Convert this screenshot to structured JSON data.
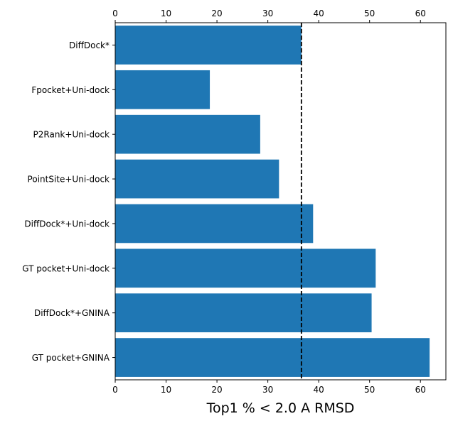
{
  "chart_data": {
    "type": "bar",
    "orientation": "horizontal",
    "categories": [
      "DiffDock*",
      "Fpocket+Uni-dock",
      "P2Rank+Uni-dock",
      "PointSite+Uni-dock",
      "DiffDock*+Uni-dock",
      "GT pocket+Uni-dock",
      "DiffDock*+GNINA",
      "GT pocket+GNINA"
    ],
    "values": [
      36.6,
      18.6,
      28.5,
      32.2,
      38.9,
      51.2,
      50.4,
      61.8
    ],
    "xlabel": "Top1 % < 2.0 A RMSD",
    "xlim": [
      0,
      65
    ],
    "xticks": [
      0,
      10,
      20,
      30,
      40,
      50,
      60
    ],
    "reference_line": {
      "value": 36.6,
      "style": "dashed",
      "color": "#000000"
    },
    "bar_color": "#1f77b4",
    "ticks_top_and_bottom": true,
    "grid": false
  }
}
